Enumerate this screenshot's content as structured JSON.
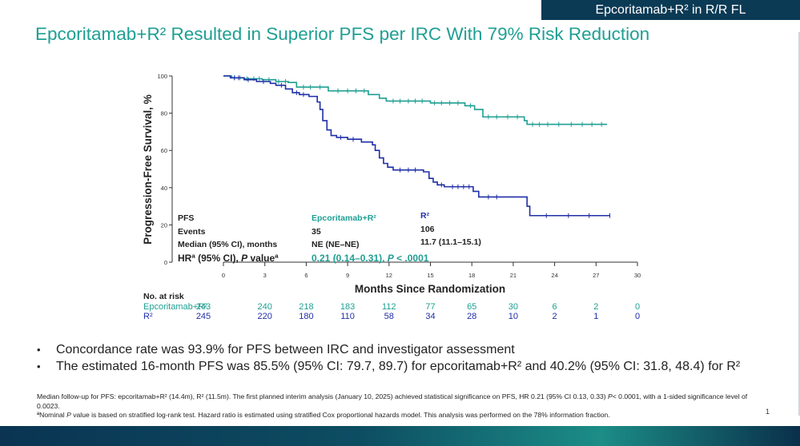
{
  "header": {
    "tag": "Epcoritamab+R² in R/R FL",
    "title": "Epcoritamab+R² Resulted in Superior PFS per IRC With 79% Risk Reduction"
  },
  "colors": {
    "epcor": "#1f9f93",
    "r2": "#1f2fa8",
    "title": "#1f9f93",
    "tag_bg": "#0b3a55"
  },
  "chart_data": {
    "type": "line",
    "title": "",
    "xlabel": "Months Since Randomization",
    "ylabel": "Progression-Free Survival, %",
    "xlim": [
      0,
      30
    ],
    "ylim": [
      0,
      100
    ],
    "xticks": [
      0,
      3,
      6,
      9,
      12,
      15,
      18,
      21,
      24,
      27,
      30
    ],
    "yticks": [
      0,
      20,
      40,
      60,
      80,
      100
    ],
    "series": [
      {
        "name": "Epcoritamab+R²",
        "color": "#1f9f93",
        "step": true,
        "x": [
          0,
          0.6,
          1.5,
          2.8,
          3.8,
          4.7,
          5.3,
          7.6,
          10.5,
          11.3,
          11.8,
          15.0,
          17.5,
          18.2,
          18.8,
          21.8,
          22.0,
          27.8
        ],
        "y": [
          100,
          99,
          98.5,
          98,
          97,
          96.5,
          94,
          92,
          90,
          88,
          86.5,
          85.5,
          84,
          82,
          78,
          76,
          74,
          74
        ],
        "censor_x": [
          0.8,
          1.2,
          1.7,
          2.2,
          2.6,
          3.3,
          4.0,
          4.5,
          5.8,
          6.3,
          7.0,
          8.3,
          9.0,
          9.6,
          10.2,
          12.3,
          12.8,
          13.4,
          13.9,
          14.4,
          15.3,
          15.8,
          16.4,
          17.0,
          17.9,
          19.2,
          19.8,
          20.6,
          21.3,
          22.4,
          22.9,
          23.5,
          24.3,
          25.2,
          26.0,
          26.7,
          27.4
        ]
      },
      {
        "name": "R²",
        "color": "#1f2fa8",
        "step": true,
        "x": [
          0,
          0.5,
          1.5,
          2.4,
          3.4,
          3.8,
          4.5,
          5.0,
          5.5,
          6.2,
          6.8,
          7.0,
          7.2,
          7.5,
          7.8,
          8.2,
          9.0,
          10.0,
          10.8,
          11.0,
          11.3,
          11.6,
          11.9,
          12.3,
          14.5,
          14.9,
          15.2,
          15.5,
          16.0,
          18.1,
          18.5,
          22.0,
          22.2,
          28.0
        ],
        "y": [
          100,
          99,
          98,
          97,
          96,
          95,
          93,
          91,
          90,
          89,
          86,
          82,
          76,
          71,
          68,
          67,
          66,
          64.5,
          63,
          60,
          56,
          53,
          51,
          49.5,
          48.5,
          45,
          43,
          41.5,
          40.5,
          38,
          35,
          30,
          25,
          25
        ],
        "censor_x": [
          0.8,
          1.1,
          1.8,
          2.9,
          4.2,
          5.3,
          5.8,
          8.5,
          9.4,
          12.8,
          13.4,
          13.9,
          15.8,
          16.6,
          17.0,
          17.4,
          17.8,
          19.2,
          19.8,
          23.4,
          25.0,
          26.5,
          28.0
        ]
      }
    ]
  },
  "stats_table": {
    "header_label": "PFS",
    "col_epcor": "Epcoritamab+R²",
    "col_r2": "R²",
    "rows": [
      {
        "label": "Events",
        "epcor": "35",
        "r2": "106"
      },
      {
        "label": "Median (95% CI), months",
        "epcor": "NE (NE–NE)",
        "r2": "11.7 (11.1–15.1)"
      }
    ],
    "hr_label_a": "HRª (95% CI), ",
    "hr_label_b": "P",
    "hr_label_c": " valueª",
    "hr_value_a": "0.21 (0.14–0.31), ",
    "hr_value_b": "P",
    "hr_value_c": " < .0001"
  },
  "at_risk": {
    "title": "No. at risk",
    "rows": [
      {
        "label": "Epcoritamab+R²",
        "values": [
          "243",
          "240",
          "218",
          "183",
          "112",
          "77",
          "65",
          "30",
          "6",
          "2",
          "0"
        ]
      },
      {
        "label": "R²",
        "values": [
          "245",
          "220",
          "180",
          "110",
          "58",
          "34",
          "28",
          "10",
          "2",
          "1",
          "0"
        ]
      }
    ]
  },
  "bullets": [
    "Concordance rate was 93.9% for PFS between IRC and investigator assessment",
    "The estimated 16-month PFS was 85.5% (95% CI: 79.7, 89.7) for epcoritamab+R² and 40.2% (95% CI: 31.8, 48.4) for R²"
  ],
  "bullet_glyph": "•",
  "footnotes": {
    "line1_a": "Median follow-up for PFS: epcoritamab+R² (14.4m), R² (11.5m). The first planned interim analysis (January 10, 2025) achieved statistical significance on PFS, HR 0.21 (95% CI 0.13, 0.33) ",
    "line1_b": "P",
    "line1_c": "< 0.0001, with a 1-sided significance level of 0.0023.",
    "line2_a": "ªNominal ",
    "line2_b": "P",
    "line2_c": " value is based on stratified log-rank test. Hazard ratio is estimated using stratified Cox proportional hazards model. This analysis was performed on the 78% information fraction."
  },
  "page_number": "1"
}
